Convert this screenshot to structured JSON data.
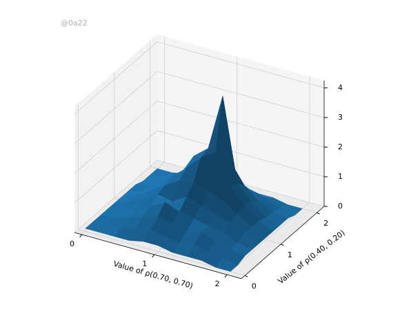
{
  "chart_data": {
    "type": "surface3d",
    "watermark": "@0a22",
    "xlabel": "Value of ρ(0.70, 0.70)",
    "ylabel": "Value of ρ(0.40, 0.20)",
    "color": "#1f77b4",
    "x": [
      0,
      0.2,
      0.4,
      0.6,
      0.8,
      1.0,
      1.2,
      1.4,
      1.6,
      1.8,
      2.0
    ],
    "y": [
      0,
      0.2,
      0.4,
      0.6,
      0.8,
      1.0,
      1.2,
      1.4,
      1.6,
      1.8,
      2.0
    ],
    "z": [
      [
        0.1,
        0.1,
        0.1,
        0.1,
        0.2,
        0.2,
        0.1,
        0.1,
        0.1,
        0.0,
        0.0
      ],
      [
        0.1,
        0.1,
        0.2,
        0.3,
        0.4,
        0.3,
        0.2,
        0.3,
        0.2,
        0.1,
        0.0
      ],
      [
        0.1,
        0.2,
        0.3,
        0.5,
        0.6,
        0.5,
        0.4,
        0.5,
        0.3,
        0.2,
        0.1
      ],
      [
        0.1,
        0.2,
        0.4,
        0.6,
        0.9,
        0.7,
        0.6,
        0.5,
        0.4,
        0.2,
        0.1
      ],
      [
        0.1,
        0.3,
        0.5,
        0.8,
        0.7,
        1.0,
        0.8,
        0.7,
        0.5,
        0.3,
        0.1
      ],
      [
        0.1,
        0.3,
        0.6,
        0.9,
        1.2,
        1.3,
        1.1,
        0.9,
        0.6,
        0.3,
        0.1
      ],
      [
        0.1,
        0.2,
        0.5,
        1.0,
        1.4,
        1.9,
        2.2,
        1.2,
        0.7,
        0.3,
        0.1
      ],
      [
        0.1,
        0.2,
        0.4,
        0.8,
        1.6,
        2.0,
        3.9,
        1.1,
        0.6,
        0.2,
        0.1
      ],
      [
        0.0,
        0.2,
        0.3,
        0.6,
        1.1,
        1.3,
        1.5,
        0.8,
        0.4,
        0.2,
        0.1
      ],
      [
        0.0,
        0.1,
        0.2,
        0.4,
        0.5,
        0.6,
        0.5,
        0.4,
        0.3,
        0.1,
        0.0
      ],
      [
        0.0,
        0.0,
        0.1,
        0.1,
        0.2,
        0.2,
        0.2,
        0.1,
        0.1,
        0.0,
        0.0
      ]
    ],
    "xlim": [
      -0.1,
      2.2
    ],
    "xticks": [
      0,
      1,
      2
    ],
    "ylim": [
      -0.1,
      2.2
    ],
    "yticks": [
      0,
      1,
      2
    ],
    "zlim": [
      0,
      4.25
    ],
    "zticks": [
      0,
      1,
      2,
      3,
      4
    ],
    "grid": true
  }
}
